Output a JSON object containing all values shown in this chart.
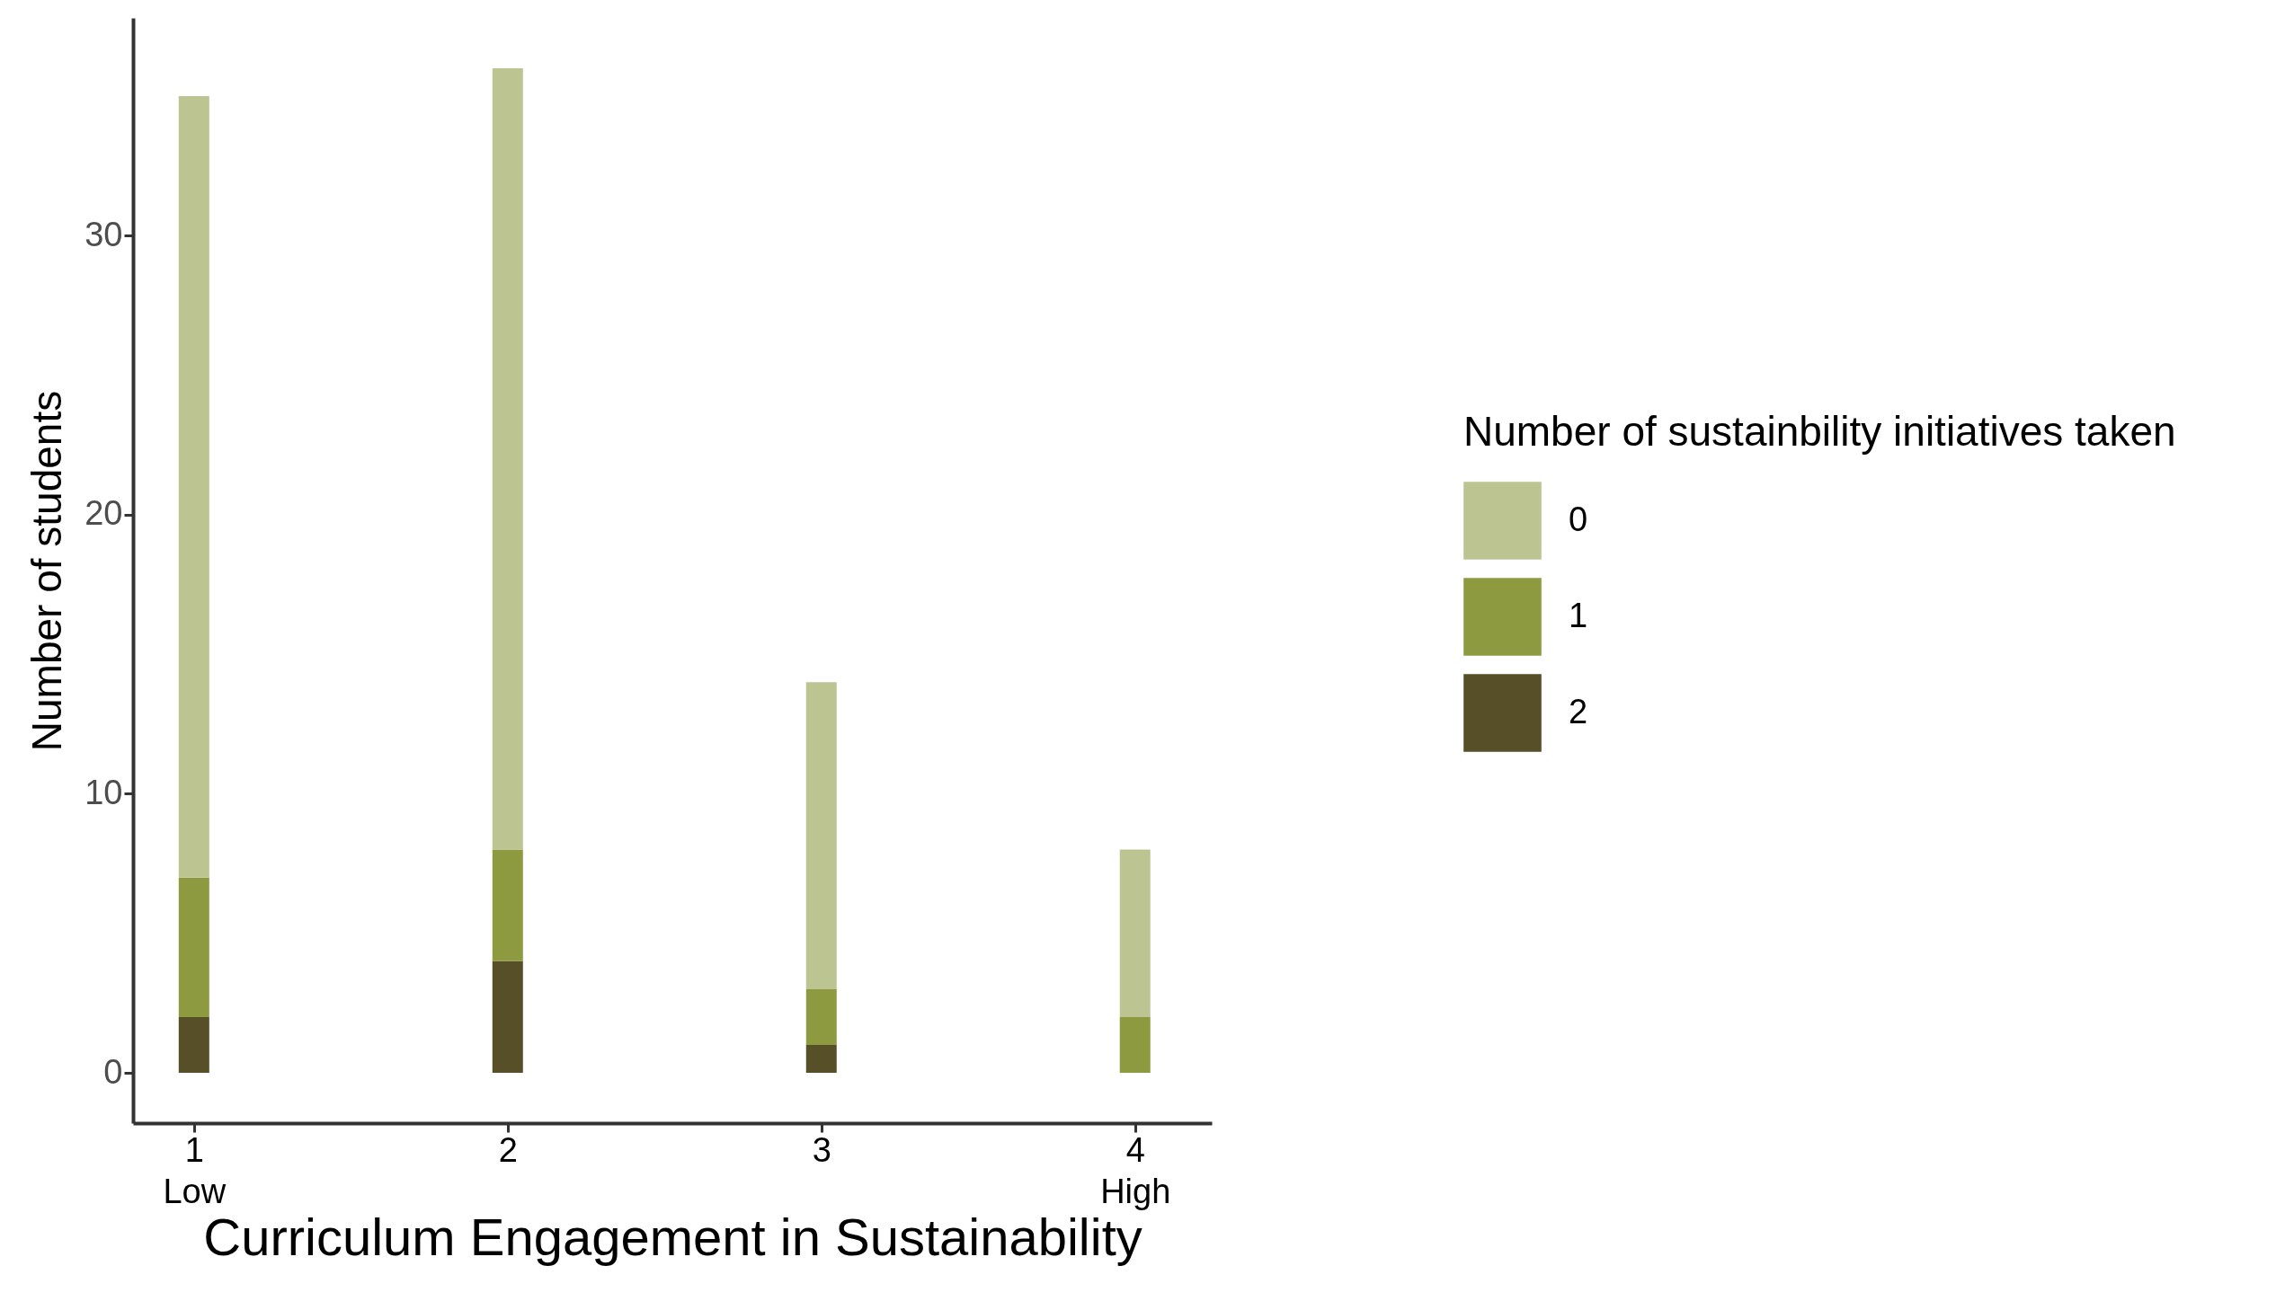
{
  "chart_data": {
    "type": "bar",
    "xlabel": "Curriculum Engagement in Sustainability",
    "ylabel": "Number of students",
    "legend_title": "Number of sustainbility initiatives taken",
    "x": [
      1,
      2,
      3,
      4
    ],
    "series": [
      {
        "name": "2",
        "color": "#564f27",
        "values": [
          2,
          4,
          1,
          0
        ]
      },
      {
        "name": "1",
        "color": "#8e9a3f",
        "values": [
          5,
          4,
          2,
          2
        ]
      },
      {
        "name": "0",
        "color": "#bcc592",
        "values": [
          28,
          28,
          11,
          6
        ]
      }
    ],
    "stacked": true,
    "xlim": [
      0.82,
      4.23
    ],
    "xticks": [
      {
        "value": 1,
        "label": "1\nLow"
      },
      2,
      3,
      {
        "value": 4,
        "label": "4\nHigh"
      }
    ],
    "ylim": [
      -1.8,
      37.8
    ],
    "yticks": [
      0,
      10,
      20,
      30
    ],
    "grid": false,
    "legend": "right"
  }
}
